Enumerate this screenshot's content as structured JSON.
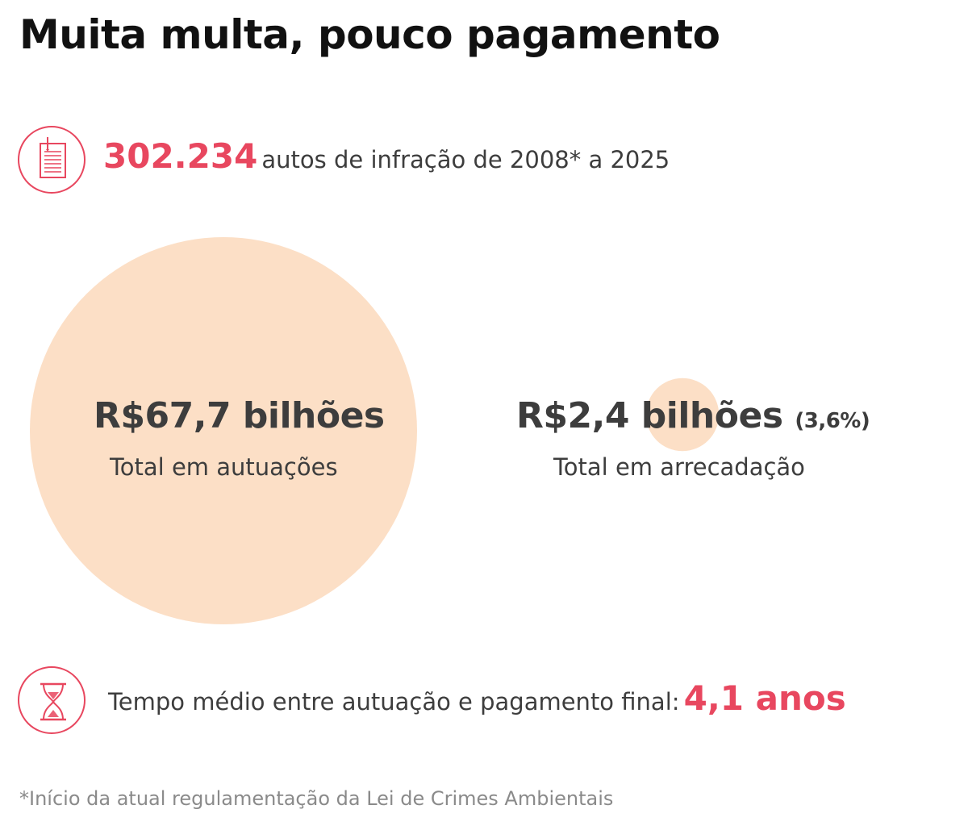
{
  "title": "Muita multa, pouco pagamento",
  "infractions": {
    "icon": "document-icon",
    "count": "302.234",
    "text": "autos de infração de 2008* a 2025"
  },
  "chart_data": {
    "type": "bubble",
    "values_billion_brl": [
      67.7,
      2.4
    ],
    "items": [
      {
        "value": 67.7,
        "value_label": "R$67,7 bilhões",
        "label": "Total em autuações"
      },
      {
        "value": 2.4,
        "value_label": "R$2,4 bilhões",
        "percent_label": "(3,6%)",
        "label": "Total em arrecadação"
      }
    ],
    "bubble_color": "#fcdfc6"
  },
  "time": {
    "icon": "hourglass-icon",
    "text": "Tempo médio entre autuação e pagamento final:",
    "value": "4,1 anos"
  },
  "footnote": "*Início da atual regulamentação da Lei de Crimes Ambientais",
  "colors": {
    "accent": "#e8475f",
    "text": "#3d3d3d",
    "title": "#111111",
    "muted": "#8a8a8a",
    "bubble": "#fcdfc6"
  }
}
